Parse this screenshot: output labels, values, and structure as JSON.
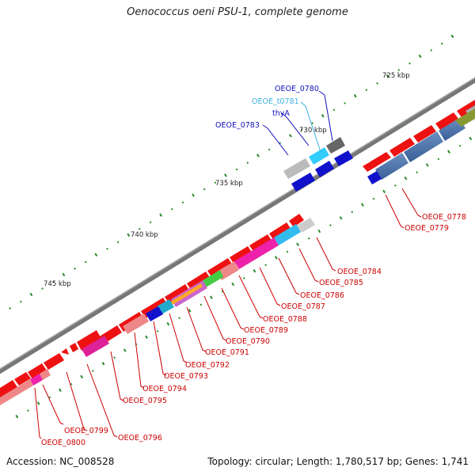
{
  "title": "Oenococcus oeni PSU-1, complete genome",
  "footer": {
    "accession": "Accession: NC_008528",
    "summary": "Topology: circular; Length: 1,780,517 bp; Genes: 1,741"
  },
  "scale_ticks": [
    "725 kbp",
    "730 kbp",
    "735 kbp",
    "740 kbp",
    "745 kbp"
  ],
  "gene_labels_top": [
    {
      "text": "OEOE_0780",
      "color": "#1010c0"
    },
    {
      "text": "OEOE_t0781",
      "color": "#3ab0e0"
    },
    {
      "text": "thyA",
      "color": "#1010c0"
    },
    {
      "text": "OEOE_0783",
      "color": "#1010c0"
    }
  ],
  "gene_labels_bottom": [
    "OEOE_0778",
    "OEOE_0779",
    "OEOE_0784",
    "OEOE_0785",
    "OEOE_0786",
    "OEOE_0787",
    "OEOE_0788",
    "OEOE_0789",
    "OEOE_0790",
    "OEOE_0791",
    "OEOE_0792",
    "OEOE_0793",
    "OEOE_0794",
    "OEOE_0795",
    "OEOE_0796",
    "OEOE_0799",
    "OEOE_0800"
  ],
  "colors": {
    "forward_cds": "#ee1111",
    "reverse_cds": "#1111cc",
    "trna": "#33ccff",
    "label_red": "#cc0000"
  }
}
